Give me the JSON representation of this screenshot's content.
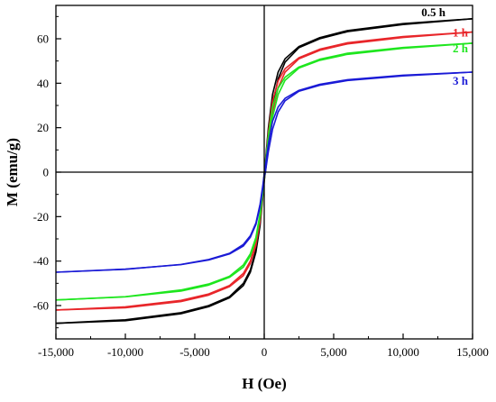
{
  "chart_data": {
    "type": "line",
    "title": "",
    "xlabel": "H (Oe)",
    "ylabel": "M (emu/g)",
    "xlim": [
      -15000,
      15000
    ],
    "ylim": [
      -75,
      75
    ],
    "x_ticks": [
      -15000,
      -10000,
      -5000,
      0,
      5000,
      10000,
      15000
    ],
    "x_tick_labels": [
      "-15,000",
      "-10,000",
      "-5,000",
      "0",
      "5,000",
      "10,000",
      "15,000"
    ],
    "y_ticks": [
      -60,
      -40,
      -20,
      0,
      20,
      40,
      60
    ],
    "y_tick_labels": [
      "-60",
      "-40",
      "-20",
      "0",
      "20",
      "40",
      "60"
    ],
    "grid": false,
    "legend": "inline labels at right end of curves",
    "series": [
      {
        "name": "0.5 h",
        "color": "#000000",
        "ms": 69,
        "hc": 150,
        "x": [
          -15000,
          -10000,
          -6000,
          -4000,
          -2500,
          -1500,
          -1000,
          -600,
          -300,
          -100,
          0,
          100,
          300,
          600,
          1000,
          1500,
          2500,
          4000,
          6000,
          10000,
          15000
        ],
        "branch_up": [
          -68,
          -66.4,
          -63.2,
          -60,
          -56,
          -50,
          -44,
          -35,
          -22,
          -9,
          -1,
          6,
          20,
          35,
          45,
          51,
          56.5,
          60.5,
          63.7,
          66.8,
          69
        ],
        "branch_down": [
          -68,
          -66.8,
          -63.7,
          -60.5,
          -56.5,
          -51,
          -45,
          -36,
          -24,
          -11,
          -4,
          1,
          14,
          30,
          42,
          49.5,
          56,
          60,
          63.2,
          66.4,
          69
        ]
      },
      {
        "name": "1 h",
        "color": "#e8262a",
        "ms": 63,
        "hc": 130,
        "x": [
          -15000,
          -10000,
          -6000,
          -4000,
          -2500,
          -1500,
          -1000,
          -600,
          -300,
          -100,
          0,
          100,
          300,
          600,
          1000,
          1500,
          2500,
          4000,
          6000,
          10000,
          15000
        ],
        "branch_up": [
          -62,
          -60.6,
          -57.7,
          -54.8,
          -51,
          -45.5,
          -40,
          -32,
          -20,
          -8,
          -1,
          5,
          18,
          32,
          41,
          46.5,
          51.5,
          55.3,
          58.2,
          61,
          63
        ],
        "branch_down": [
          -62,
          -61,
          -58.2,
          -55.3,
          -51.5,
          -46.5,
          -41,
          -33,
          -22,
          -10,
          -3,
          1,
          13,
          27,
          38,
          45,
          51,
          54.8,
          57.7,
          60.6,
          63
        ]
      },
      {
        "name": "2 h",
        "color": "#1ee61e",
        "ms": 58,
        "hc": 120,
        "x": [
          -15000,
          -10000,
          -6000,
          -4000,
          -2500,
          -1500,
          -1000,
          -600,
          -300,
          -100,
          0,
          100,
          300,
          600,
          1000,
          1500,
          2500,
          4000,
          6000,
          10000,
          15000
        ],
        "branch_up": [
          -57.5,
          -56,
          -53,
          -50.3,
          -46.8,
          -41.7,
          -36.7,
          -29.4,
          -18.5,
          -7.4,
          -1,
          4.6,
          16.5,
          29.4,
          37.7,
          42.7,
          47.3,
          50.8,
          53.5,
          56.1,
          58
        ],
        "branch_down": [
          -57.5,
          -56.1,
          -53.5,
          -50.8,
          -47.3,
          -42.7,
          -37.7,
          -30.3,
          -20.2,
          -9.2,
          -2.8,
          0.9,
          12,
          24.8,
          34.9,
          41.3,
          46.8,
          50.3,
          53,
          55.7,
          58
        ]
      },
      {
        "name": "3 h",
        "color": "#1a1ad6",
        "ms": 45,
        "hc": 100,
        "x": [
          -15000,
          -10000,
          -6000,
          -4000,
          -2500,
          -1500,
          -1000,
          -600,
          -300,
          -100,
          0,
          100,
          300,
          600,
          1000,
          1500,
          2500,
          4000,
          6000,
          10000,
          15000
        ],
        "branch_up": [
          -45,
          -43.7,
          -41.5,
          -39.3,
          -36.5,
          -32.5,
          -28.6,
          -22.9,
          -14.4,
          -5.8,
          -0.8,
          3.6,
          12.8,
          22.9,
          29.3,
          33.2,
          36.8,
          39.5,
          41.6,
          43.6,
          45
        ],
        "branch_down": [
          -45,
          -43.6,
          -41.6,
          -39.5,
          -36.8,
          -33.2,
          -29.3,
          -23.6,
          -15.7,
          -7.2,
          -2.2,
          0.7,
          9.3,
          19.3,
          27.1,
          32.1,
          36.4,
          39.1,
          41.2,
          43.3,
          45
        ]
      }
    ]
  }
}
